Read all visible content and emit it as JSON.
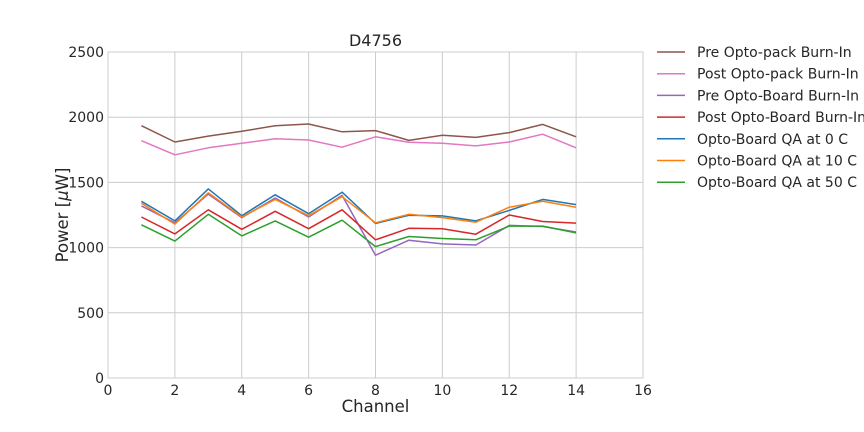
{
  "chart_data": {
    "type": "line",
    "title": "D4756",
    "xlabel": "Channel",
    "ylabel_prefix": "Power [",
    "ylabel_mu": "μ",
    "ylabel_suffix": "W]",
    "xlim": [
      0,
      16
    ],
    "ylim": [
      0,
      2500
    ],
    "xticks": [
      0,
      2,
      4,
      6,
      8,
      10,
      12,
      14,
      16
    ],
    "yticks": [
      0,
      500,
      1000,
      1500,
      2000,
      2500
    ],
    "grid": true,
    "legend_position": "right, outside plot",
    "x": [
      1,
      2,
      3,
      4,
      5,
      6,
      7,
      8,
      9,
      10,
      11,
      12,
      13,
      14
    ],
    "series": [
      {
        "name": "Pre Opto-pack Burn-In",
        "color": "#8c564b",
        "values": [
          1935,
          1810,
          1855,
          1892,
          1935,
          1948,
          1888,
          1897,
          1822,
          1862,
          1845,
          1882,
          1945,
          1850
        ]
      },
      {
        "name": "Post Opto-pack Burn-In",
        "color": "#e377c2",
        "values": [
          1820,
          1712,
          1765,
          1800,
          1835,
          1825,
          1770,
          1850,
          1808,
          1800,
          1780,
          1810,
          1870,
          1765
        ]
      },
      {
        "name": "Pre Opto-Board Burn-In",
        "color": "#9467bd",
        "values": [
          1320,
          1190,
          1410,
          1230,
          1380,
          1235,
          1400,
          942,
          1057,
          1028,
          1020,
          1170,
          1162,
          1120
        ]
      },
      {
        "name": "Post Opto-Board Burn-In",
        "color": "#d62728",
        "values": [
          1235,
          1105,
          1290,
          1140,
          1278,
          1145,
          1290,
          1060,
          1148,
          1145,
          1103,
          1250,
          1200,
          1188
        ]
      },
      {
        "name": "Opto-Board QA at 0 C",
        "color": "#1f77b4",
        "values": [
          1355,
          1205,
          1450,
          1245,
          1405,
          1260,
          1425,
          1185,
          1248,
          1243,
          1205,
          1285,
          1370,
          1330
        ]
      },
      {
        "name": "Opto-Board QA at 10 C",
        "color": "#ff7f0e",
        "values": [
          1340,
          1180,
          1420,
          1235,
          1370,
          1245,
          1390,
          1190,
          1255,
          1230,
          1195,
          1310,
          1355,
          1310
        ]
      },
      {
        "name": "Opto-Board QA at 50 C",
        "color": "#2ca02c",
        "values": [
          1175,
          1050,
          1255,
          1090,
          1205,
          1080,
          1210,
          1008,
          1085,
          1070,
          1060,
          1165,
          1165,
          1113
        ]
      }
    ]
  }
}
